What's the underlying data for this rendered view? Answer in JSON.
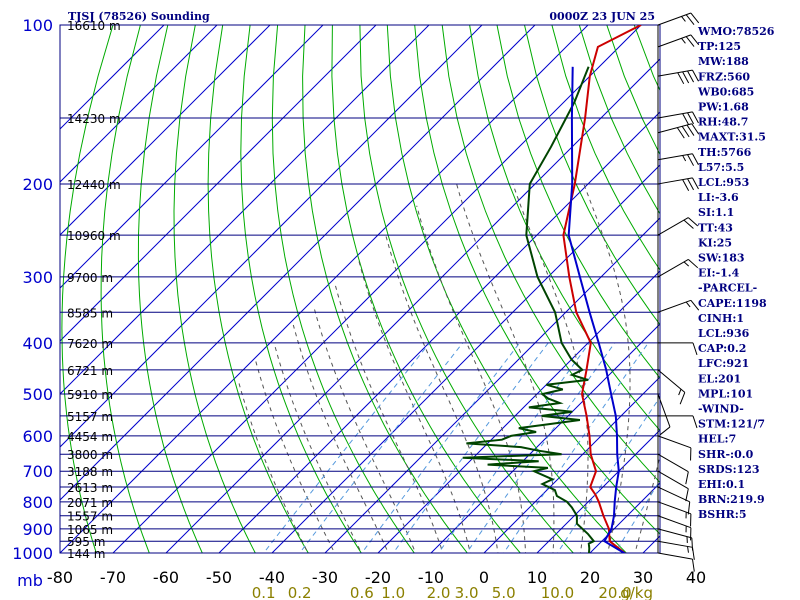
{
  "chart_data": {
    "type": "line",
    "title_left": "TJSJ (78526) Sounding",
    "title_right": "0000Z 23 JUN 25",
    "xlabel": "",
    "ylabel": "mb",
    "pressure_ticks": [
      100,
      200,
      300,
      400,
      500,
      600,
      700,
      800,
      900,
      1000
    ],
    "temperature_ticks": [
      -80,
      -70,
      -60,
      -50,
      -40,
      -30,
      -20,
      -10,
      0,
      10,
      20,
      30,
      40
    ],
    "mixing_ratio_ticks": [
      "0.1",
      "0.2",
      "0.6",
      "1.0",
      "2.0",
      "3.0",
      "5.0",
      "10.0",
      "20.0",
      "40.0"
    ],
    "mixing_ratio_unit": "g/kg",
    "height_labels": [
      {
        "p": 100,
        "label": "16610 m"
      },
      {
        "p": 150,
        "label": "14230 m"
      },
      {
        "p": 200,
        "label": "12440 m"
      },
      {
        "p": 250,
        "label": "10960 m"
      },
      {
        "p": 300,
        "label": "9700 m"
      },
      {
        "p": 350,
        "label": "8585 m"
      },
      {
        "p": 400,
        "label": "7620 m"
      },
      {
        "p": 450,
        "label": "6721 m"
      },
      {
        "p": 500,
        "label": "5910 m"
      },
      {
        "p": 550,
        "label": "5157 m"
      },
      {
        "p": 600,
        "label": "4454 m"
      },
      {
        "p": 650,
        "label": "3800 m"
      },
      {
        "p": 700,
        "label": "3188 m"
      },
      {
        "p": 750,
        "label": "2613 m"
      },
      {
        "p": 800,
        "label": "2071 m"
      },
      {
        "p": 850,
        "label": "1557 m"
      },
      {
        "p": 900,
        "label": "1065 m"
      },
      {
        "p": 950,
        "label": "595 m"
      },
      {
        "p": 1000,
        "label": "144 m"
      }
    ],
    "series": [
      {
        "key": "temperature",
        "color": "#cc0000",
        "points": [
          [
            1005,
            27
          ],
          [
            950,
            21.5
          ],
          [
            900,
            19
          ],
          [
            850,
            15.5
          ],
          [
            800,
            12
          ],
          [
            775,
            10
          ],
          [
            750,
            7.6
          ],
          [
            700,
            5.7
          ],
          [
            650,
            1.5
          ],
          [
            600,
            -2.2
          ],
          [
            550,
            -6.5
          ],
          [
            500,
            -11.5
          ],
          [
            450,
            -15.2
          ],
          [
            400,
            -19.5
          ],
          [
            350,
            -28
          ],
          [
            300,
            -36
          ],
          [
            250,
            -45
          ],
          [
            200,
            -52.5
          ],
          [
            150,
            -63
          ],
          [
            125,
            -70
          ],
          [
            110,
            -74
          ],
          [
            100,
            -70
          ]
        ]
      },
      {
        "key": "dewpoint",
        "color": "#004400",
        "points": [
          [
            1005,
            20
          ],
          [
            980,
            19
          ],
          [
            960,
            18
          ],
          [
            950,
            18.5
          ],
          [
            920,
            16
          ],
          [
            880,
            12
          ],
          [
            850,
            10.5
          ],
          [
            820,
            8
          ],
          [
            800,
            6
          ],
          [
            780,
            3
          ],
          [
            760,
            1.5
          ],
          [
            740,
            -2
          ],
          [
            725,
            -1
          ],
          [
            700,
            -6
          ],
          [
            690,
            -4
          ],
          [
            680,
            -16
          ],
          [
            670,
            -7
          ],
          [
            660,
            -22
          ],
          [
            650,
            -4
          ],
          [
            640,
            -9
          ],
          [
            630,
            -13
          ],
          [
            620,
            -24
          ],
          [
            610,
            -18
          ],
          [
            600,
            -17
          ],
          [
            590,
            -13
          ],
          [
            580,
            -17
          ],
          [
            570,
            -12
          ],
          [
            560,
            -7
          ],
          [
            550,
            -15
          ],
          [
            540,
            -10
          ],
          [
            530,
            -19
          ],
          [
            520,
            -14
          ],
          [
            510,
            -17
          ],
          [
            500,
            -19
          ],
          [
            490,
            -16
          ],
          [
            480,
            -20
          ],
          [
            470,
            -13
          ],
          [
            460,
            -17
          ],
          [
            450,
            -16
          ],
          [
            430,
            -20
          ],
          [
            400,
            -25
          ],
          [
            350,
            -32
          ],
          [
            300,
            -42
          ],
          [
            250,
            -52
          ],
          [
            200,
            -61
          ],
          [
            170,
            -64
          ],
          [
            140,
            -68
          ],
          [
            120,
            -72
          ]
        ]
      },
      {
        "key": "parcel",
        "color": "#0000cc",
        "points": [
          [
            1005,
            27
          ],
          [
            950,
            20.5
          ],
          [
            900,
            19.5
          ],
          [
            850,
            17.5
          ],
          [
            800,
            15
          ],
          [
            750,
            12.5
          ],
          [
            700,
            10
          ],
          [
            650,
            6.5
          ],
          [
            600,
            3
          ],
          [
            550,
            -1
          ],
          [
            500,
            -6
          ],
          [
            450,
            -11.5
          ],
          [
            400,
            -18
          ],
          [
            350,
            -25.5
          ],
          [
            300,
            -34
          ],
          [
            250,
            -44
          ],
          [
            200,
            -53
          ],
          [
            150,
            -65.5
          ],
          [
            120,
            -75
          ]
        ]
      }
    ],
    "wind_barbs": [
      {
        "p": 1000,
        "dir": 100,
        "spd": 10
      },
      {
        "p": 950,
        "dir": 100,
        "spd": 15
      },
      {
        "p": 900,
        "dir": 105,
        "spd": 15
      },
      {
        "p": 850,
        "dir": 110,
        "spd": 15
      },
      {
        "p": 800,
        "dir": 110,
        "spd": 15
      },
      {
        "p": 750,
        "dir": 115,
        "spd": 10
      },
      {
        "p": 700,
        "dir": 120,
        "spd": 10
      },
      {
        "p": 650,
        "dir": 120,
        "spd": 10
      },
      {
        "p": 600,
        "dir": 110,
        "spd": 10
      },
      {
        "p": 550,
        "dir": 90,
        "spd": 10
      },
      {
        "p": 500,
        "dir": 160,
        "spd": 10
      },
      {
        "p": 450,
        "dir": 130,
        "spd": 15
      },
      {
        "p": 400,
        "dir": 90,
        "spd": 10
      },
      {
        "p": 350,
        "dir": 70,
        "spd": 15
      },
      {
        "p": 300,
        "dir": 60,
        "spd": 15
      },
      {
        "p": 250,
        "dir": 60,
        "spd": 20
      },
      {
        "p": 200,
        "dir": 80,
        "spd": 30
      },
      {
        "p": 180,
        "dir": 80,
        "spd": 25
      },
      {
        "p": 160,
        "dir": 75,
        "spd": 40
      },
      {
        "p": 150,
        "dir": 80,
        "spd": 30
      },
      {
        "p": 125,
        "dir": 80,
        "spd": 40
      },
      {
        "p": 110,
        "dir": 70,
        "spd": 25
      },
      {
        "p": 100,
        "dir": 70,
        "spd": 25
      }
    ],
    "indices": [
      "WMO:78526",
      "TP:125",
      "MW:188",
      "FRZ:560",
      "WB0:685",
      "PW:1.68",
      "RH:48.7",
      "MAXT:31.5",
      "TH:5766",
      "L57:5.5",
      "LCL:953",
      "LI:-3.6",
      "SI:1.1",
      "TT:43",
      "KI:25",
      "SW:183",
      "EI:-1.4",
      "-PARCEL-",
      "CAPE:1198",
      "CINH:1",
      "LCL:936",
      "CAP:0.2",
      "LFC:921",
      "EL:201",
      "MPL:101",
      "-WIND-",
      "STM:121/7",
      "HEL:7",
      "SHR-:0.0",
      "SRDS:123",
      "EHI:0.1",
      "BRN:219.9",
      "BSHR:5"
    ],
    "colors": {
      "isobar": "#000080",
      "isotherm": "#0000cc",
      "dry_adiabat": "#00aa00",
      "moist_adiabat": "#555555",
      "mixing_ratio": "#5599dd",
      "axis_text": "#0000cc",
      "mixing_ratio_text": "#8b8000"
    }
  }
}
